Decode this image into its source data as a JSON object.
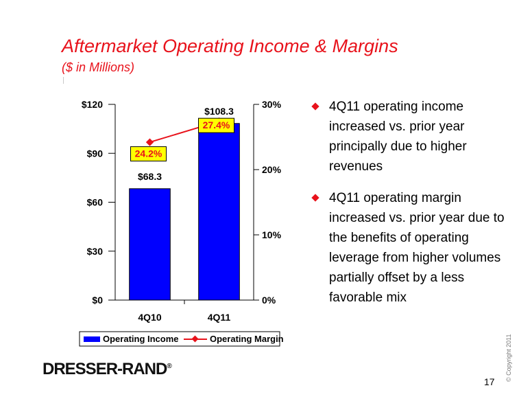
{
  "header": {
    "title": "Aftermarket Operating Income & Margins",
    "subtitle": "($ in Millions)"
  },
  "chart_data": {
    "type": "bar",
    "categories": [
      "4Q10",
      "4Q11"
    ],
    "series": [
      {
        "name": "Operating Income",
        "type": "bar",
        "axis": "left",
        "values": [
          68.3,
          108.3
        ],
        "labels": [
          "$68.3",
          "$108.3"
        ],
        "color": "#0000ff"
      },
      {
        "name": "Operating Margin",
        "type": "line",
        "axis": "right",
        "values": [
          24.2,
          27.4
        ],
        "labels": [
          "24.2%",
          "27.4%"
        ],
        "color": "#e8121b"
      }
    ],
    "left_axis": {
      "ylim": [
        0,
        120
      ],
      "ticks": [
        0,
        30,
        60,
        90,
        120
      ],
      "tick_labels": [
        "$0",
        "$30",
        "$60",
        "$90",
        "$120"
      ]
    },
    "right_axis": {
      "ylim": [
        0,
        30
      ],
      "ticks": [
        0,
        10,
        20,
        30
      ],
      "tick_labels": [
        "0%",
        "10%",
        "20%",
        "30%"
      ]
    },
    "legend": {
      "placement": "bottom",
      "entries": [
        "Operating Income",
        "Operating Margin"
      ]
    },
    "grid": false,
    "label_box_color": "#ffff00"
  },
  "bullets": [
    "4Q11 operating income increased vs. prior year principally due to higher revenues",
    "4Q11 operating margin increased vs. prior year due to the benefits of operating leverage from higher volumes partially offset by a less favorable mix"
  ],
  "footer": {
    "logo_text": "DRESSER-RAND",
    "logo_mark": "®",
    "copyright": "© Copyright 2011",
    "page_number": "17"
  },
  "colors": {
    "accent": "#e8121b",
    "bar": "#0000ff"
  }
}
